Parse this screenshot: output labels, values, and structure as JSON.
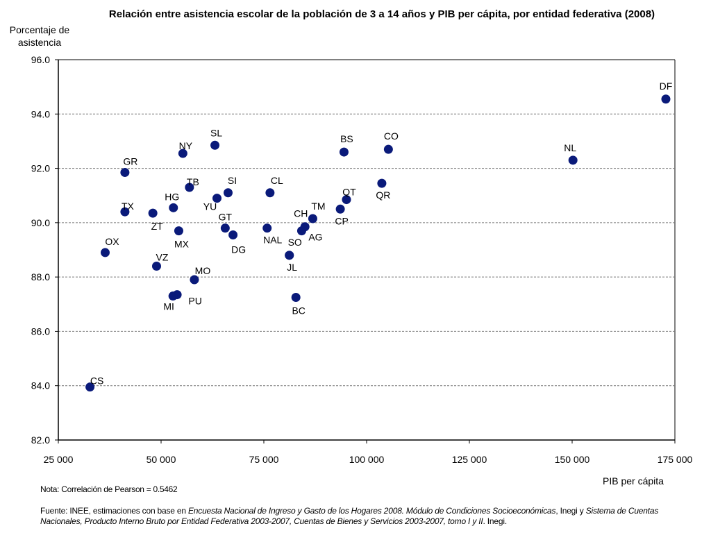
{
  "chart_data": {
    "type": "scatter",
    "title": "Relación entre asistencia escolar de la población de 3 a 14 años y PIB per cápita, por entidad federativa (2008)",
    "ylabel": "Porcentaje de asistencia",
    "xlabel": "PIB per cápita",
    "xlim": [
      25000,
      175000
    ],
    "ylim": [
      82.0,
      96.0
    ],
    "xticks": [
      "25 000",
      "50 000",
      "75 000",
      "100 000",
      "125 000",
      "150 000",
      "175 000"
    ],
    "yticks": [
      "82.0",
      "84.0",
      "86.0",
      "88.0",
      "90.0",
      "92.0",
      "94.0",
      "96.0"
    ],
    "grid": "horizontal dashed",
    "marker_color": "#0a1a7a",
    "points": [
      {
        "label": "DF",
        "x": 172800,
        "y": 94.55
      },
      {
        "label": "NL",
        "x": 150200,
        "y": 92.3
      },
      {
        "label": "CO",
        "x": 105300,
        "y": 92.7
      },
      {
        "label": "BS",
        "x": 94500,
        "y": 92.6
      },
      {
        "label": "QR",
        "x": 103700,
        "y": 91.45
      },
      {
        "label": "QT",
        "x": 95100,
        "y": 90.85
      },
      {
        "label": "CP",
        "x": 93600,
        "y": 90.5
      },
      {
        "label": "TM",
        "x": 86900,
        "y": 90.15
      },
      {
        "label": "CH",
        "x": 85000,
        "y": 89.85
      },
      {
        "label": "AG",
        "x": 84200,
        "y": 89.7
      },
      {
        "label": "SO",
        "x": 81200,
        "y": 88.8
      },
      {
        "label": "JL",
        "x": 81200,
        "y": 88.8
      },
      {
        "label": "BC",
        "x": 82800,
        "y": 87.25
      },
      {
        "label": "NAL",
        "x": 75800,
        "y": 89.8
      },
      {
        "label": "CL",
        "x": 76500,
        "y": 91.1
      },
      {
        "label": "SL",
        "x": 63100,
        "y": 92.85
      },
      {
        "label": "SI",
        "x": 66300,
        "y": 91.1
      },
      {
        "label": "YU",
        "x": 63600,
        "y": 90.9
      },
      {
        "label": "GT",
        "x": 65600,
        "y": 89.8
      },
      {
        "label": "DG",
        "x": 67500,
        "y": 89.55
      },
      {
        "label": "NY",
        "x": 55300,
        "y": 92.55
      },
      {
        "label": "TB",
        "x": 56900,
        "y": 91.3
      },
      {
        "label": "HG",
        "x": 53000,
        "y": 90.55
      },
      {
        "label": "MX",
        "x": 54300,
        "y": 89.7
      },
      {
        "label": "MO",
        "x": 58100,
        "y": 87.9
      },
      {
        "label": "PU",
        "x": 53900,
        "y": 87.35
      },
      {
        "label": "MI",
        "x": 52900,
        "y": 87.3
      },
      {
        "label": "GR",
        "x": 41200,
        "y": 91.85
      },
      {
        "label": "TX",
        "x": 41200,
        "y": 90.4
      },
      {
        "label": "ZT",
        "x": 48000,
        "y": 90.35
      },
      {
        "label": "VZ",
        "x": 48900,
        "y": 88.4
      },
      {
        "label": "OX",
        "x": 36400,
        "y": 88.9
      },
      {
        "label": "CS",
        "x": 32700,
        "y": 83.95
      }
    ]
  },
  "footer": {
    "note": "Nota: Correlación de Pearson = 0.5462",
    "source_prefix": "Fuente: INEE, estimaciones con base en ",
    "source_italic_1": "Encuesta Nacional de Ingreso y Gasto de los Hogares 2008. Módulo de Condiciones Socioeconómicas",
    "source_mid": ", Inegi y ",
    "source_italic_2": "Sistema de Cuentas Nacionales, Producto Interno Bruto por Entidad Federativa 2003-2007, Cuentas de Bienes y Servicios 2003-2007, tomo I y II",
    "source_end": ". Inegi."
  }
}
